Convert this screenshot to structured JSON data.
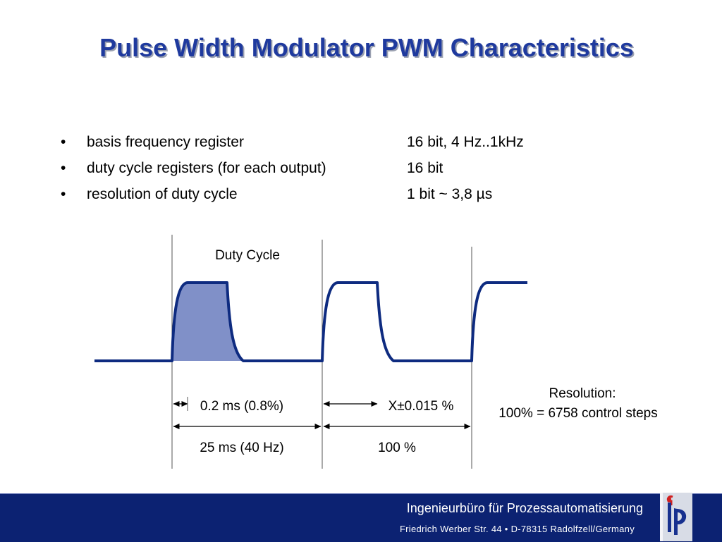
{
  "slide": {
    "title": "Pulse Width Modulator PWM Characteristics",
    "bullets": [
      {
        "label": "basis frequency register",
        "value": "16 bit, 4 Hz..1kHz"
      },
      {
        "label": "duty cycle registers (for each output)",
        "value": "16 bit"
      },
      {
        "label": "resolution of duty cycle",
        "value": "1 bit ~ 3,8 µs"
      }
    ]
  },
  "diagram": {
    "duty_cycle_label": "Duty Cycle",
    "resolution_step": "0.2 ms (0.8%)",
    "tolerance": "X±0.015 %",
    "period": "25 ms (40 Hz)",
    "full_scale": "100 %",
    "resolution_title": "Resolution:",
    "resolution_detail": "100% = 6758 control steps",
    "colors": {
      "signal": "#0e2b80",
      "fill": "#8090c8",
      "guide": "#555555"
    }
  },
  "footer": {
    "company": "Ingenieurbüro für Prozessautomatisierung",
    "address": "Friedrich Werber Str. 44  • D-78315 Radolfzell/Germany",
    "background": "#0c2272",
    "logo_icon": "ifp-logo-icon"
  }
}
